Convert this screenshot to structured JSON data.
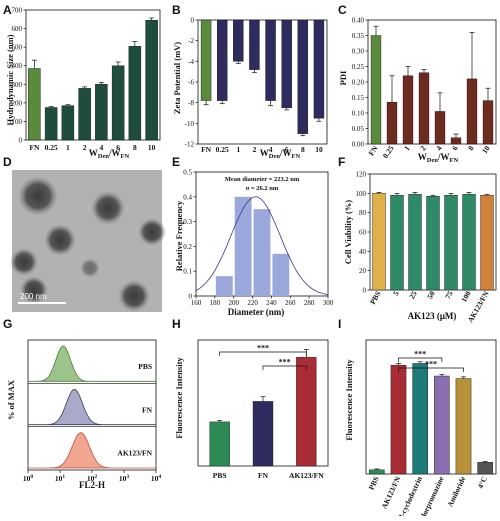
{
  "chart_data": [
    {
      "panel": "A",
      "type": "bar",
      "ylabel": "Hydrodynamic Size (nm)",
      "xlabel_main": "W",
      "xlabel_sub1": "Den",
      "xlabel_sub2": "FN",
      "ylim": [
        0,
        700
      ],
      "yticks": [
        0,
        100,
        200,
        300,
        400,
        500,
        600,
        700
      ],
      "categories": [
        "FN",
        "0.25",
        "1",
        "2",
        "4",
        "6",
        "8",
        "10"
      ],
      "values": [
        385,
        175,
        185,
        278,
        300,
        400,
        505,
        645
      ],
      "errors": [
        45,
        5,
        5,
        8,
        10,
        20,
        25,
        12
      ],
      "colors": [
        "#5a8a3c",
        "#1f4d3b",
        "#1f4d3b",
        "#1f4d3b",
        "#1f4d3b",
        "#1f4d3b",
        "#1f4d3b",
        "#1f4d3b"
      ]
    },
    {
      "panel": "B",
      "type": "bar",
      "ylabel": "Zeta Potential (mV)",
      "xlabel_main": "W",
      "xlabel_sub1": "Den",
      "xlabel_sub2": "FN",
      "ylim": [
        -12,
        0
      ],
      "yticks": [
        0,
        -2,
        -4,
        -6,
        -8,
        -10,
        -12
      ],
      "categories": [
        "FN",
        "0.25",
        "1",
        "2",
        "4",
        "6",
        "8",
        "10"
      ],
      "values": [
        -7.8,
        -7.8,
        -4.0,
        -4.8,
        -7.8,
        -8.5,
        -11.0,
        -9.5
      ],
      "errors": [
        0.4,
        0.3,
        0.2,
        0.3,
        0.5,
        0.2,
        0.2,
        0.3
      ],
      "colors": [
        "#5a8a3c",
        "#2e2b5e",
        "#2e2b5e",
        "#2e2b5e",
        "#2e2b5e",
        "#2e2b5e",
        "#2e2b5e",
        "#2e2b5e"
      ]
    },
    {
      "panel": "C",
      "type": "bar",
      "ylabel": "PDI",
      "xlabel_main": "W",
      "xlabel_sub1": "Den",
      "xlabel_sub2": "FN",
      "ylim": [
        0,
        0.4
      ],
      "yticks": [
        0.0,
        0.05,
        0.1,
        0.15,
        0.2,
        0.25,
        0.3,
        0.35,
        0.4
      ],
      "ytick_labels": [
        "0.00",
        "0.05",
        "0.10",
        "0.15",
        "0.20",
        "0.25",
        "0.30",
        "0.35",
        "0.40"
      ],
      "categories": [
        "FN",
        "0.25",
        "1",
        "2",
        "4",
        "6",
        "8",
        "10"
      ],
      "values": [
        0.35,
        0.135,
        0.22,
        0.23,
        0.105,
        0.02,
        0.21,
        0.14
      ],
      "errors": [
        0.03,
        0.085,
        0.03,
        0.01,
        0.06,
        0.012,
        0.15,
        0.04
      ],
      "colors": [
        "#5a8a3c",
        "#6e2a1e",
        "#6e2a1e",
        "#6e2a1e",
        "#6e2a1e",
        "#6e2a1e",
        "#6e2a1e",
        "#6e2a1e"
      ]
    },
    {
      "panel": "E",
      "type": "histogram",
      "ylabel": "Relative Frequency",
      "xlabel": "Diameter (nm)",
      "annotation1": "Mean diameter = 223.2 nm",
      "annotation2": "σ = 26.2 nm",
      "xlim": [
        160,
        300
      ],
      "ylim": [
        0,
        0.5
      ],
      "xticks": [
        160,
        180,
        200,
        220,
        240,
        260,
        280,
        300
      ],
      "yticks": [
        0,
        0.1,
        0.2,
        0.3,
        0.4,
        0.5
      ],
      "ytick_labels": [
        "0",
        "0.1",
        "0.2",
        "0.3",
        "0.4",
        "0.5"
      ],
      "bins": [
        [
          180,
          200
        ],
        [
          200,
          220
        ],
        [
          220,
          240
        ],
        [
          240,
          260
        ]
      ],
      "values": [
        0.08,
        0.4,
        0.35,
        0.17
      ],
      "curve_mean": 223.2,
      "curve_sigma": 26.2,
      "curve_peak": 0.4,
      "bar_color": "#9aa8dc"
    },
    {
      "panel": "F",
      "type": "bar",
      "ylabel": "Cell Viability (%)",
      "group_label": "AK123 (μM)",
      "ylim": [
        0,
        120
      ],
      "yticks": [
        0,
        20,
        40,
        60,
        80,
        100,
        120
      ],
      "categories": [
        "PBS",
        "5",
        "25",
        "50",
        "75",
        "100",
        "AK123/FN"
      ],
      "values": [
        100,
        98,
        99,
        97,
        98,
        99,
        98
      ],
      "errors": [
        1,
        2,
        2,
        1,
        2,
        2,
        1
      ],
      "colors": [
        "#e0b04a",
        "#2f8a68",
        "#2f8a68",
        "#2f8a68",
        "#2f8a68",
        "#2f8a68",
        "#d2813a"
      ]
    },
    {
      "panel": "G",
      "type": "flow-histogram",
      "ylabel": "% of MAX",
      "xlabel": "FL2-H",
      "xtick_bases": [
        "10",
        "10",
        "10",
        "10",
        "10"
      ],
      "xtick_exps": [
        "0",
        "1",
        "2",
        "3",
        "4"
      ],
      "series": [
        {
          "name": "PBS",
          "peak_log": 1.1,
          "width": 0.23,
          "color": "#9cc48a",
          "line": "#4f7d3f"
        },
        {
          "name": "FN",
          "peak_log": 1.45,
          "width": 0.25,
          "color": "#a9a9c9",
          "line": "#3a3a5c"
        },
        {
          "name": "AK123/FN",
          "peak_log": 1.65,
          "width": 0.27,
          "color": "#f2a58f",
          "line": "#c0503a"
        }
      ]
    },
    {
      "panel": "H",
      "type": "bar",
      "ylabel": "Fluorescence Intensity",
      "ylim": [
        0,
        80
      ],
      "categories": [
        "PBS",
        "FN",
        "AK123/FN"
      ],
      "values": [
        28,
        41,
        69
      ],
      "errors": [
        1,
        3,
        5
      ],
      "colors": [
        "#2e8a55",
        "#2e2b5e",
        "#a82c35"
      ],
      "significance": [
        {
          "from": 0,
          "to": 2,
          "label": "***"
        },
        {
          "from": 1,
          "to": 2,
          "label": "***"
        }
      ]
    },
    {
      "panel": "I",
      "type": "bar",
      "ylabel": "Fluorescence Intensity",
      "ylim": [
        0,
        160
      ],
      "categories": [
        "PBS",
        "AK123/FN",
        "Meth-β-cyclodextrin",
        "Chlorpromazine",
        "Amiloride",
        "4°C"
      ],
      "values": [
        5,
        130,
        132,
        117,
        114,
        14
      ],
      "errors": [
        1,
        2,
        2,
        2,
        2,
        1
      ],
      "colors": [
        "#2e8a55",
        "#a82c35",
        "#1f7a7a",
        "#8a6fb0",
        "#b89238",
        "#555555"
      ],
      "significance": [
        {
          "from": 1,
          "to": 3,
          "label": "***"
        },
        {
          "from": 1,
          "to": 4,
          "label": "***"
        }
      ]
    }
  ],
  "panel_d": {
    "scale_label": "200 nm"
  },
  "panel_letters": [
    "A",
    "B",
    "C",
    "D",
    "E",
    "F",
    "G",
    "H",
    "I"
  ]
}
